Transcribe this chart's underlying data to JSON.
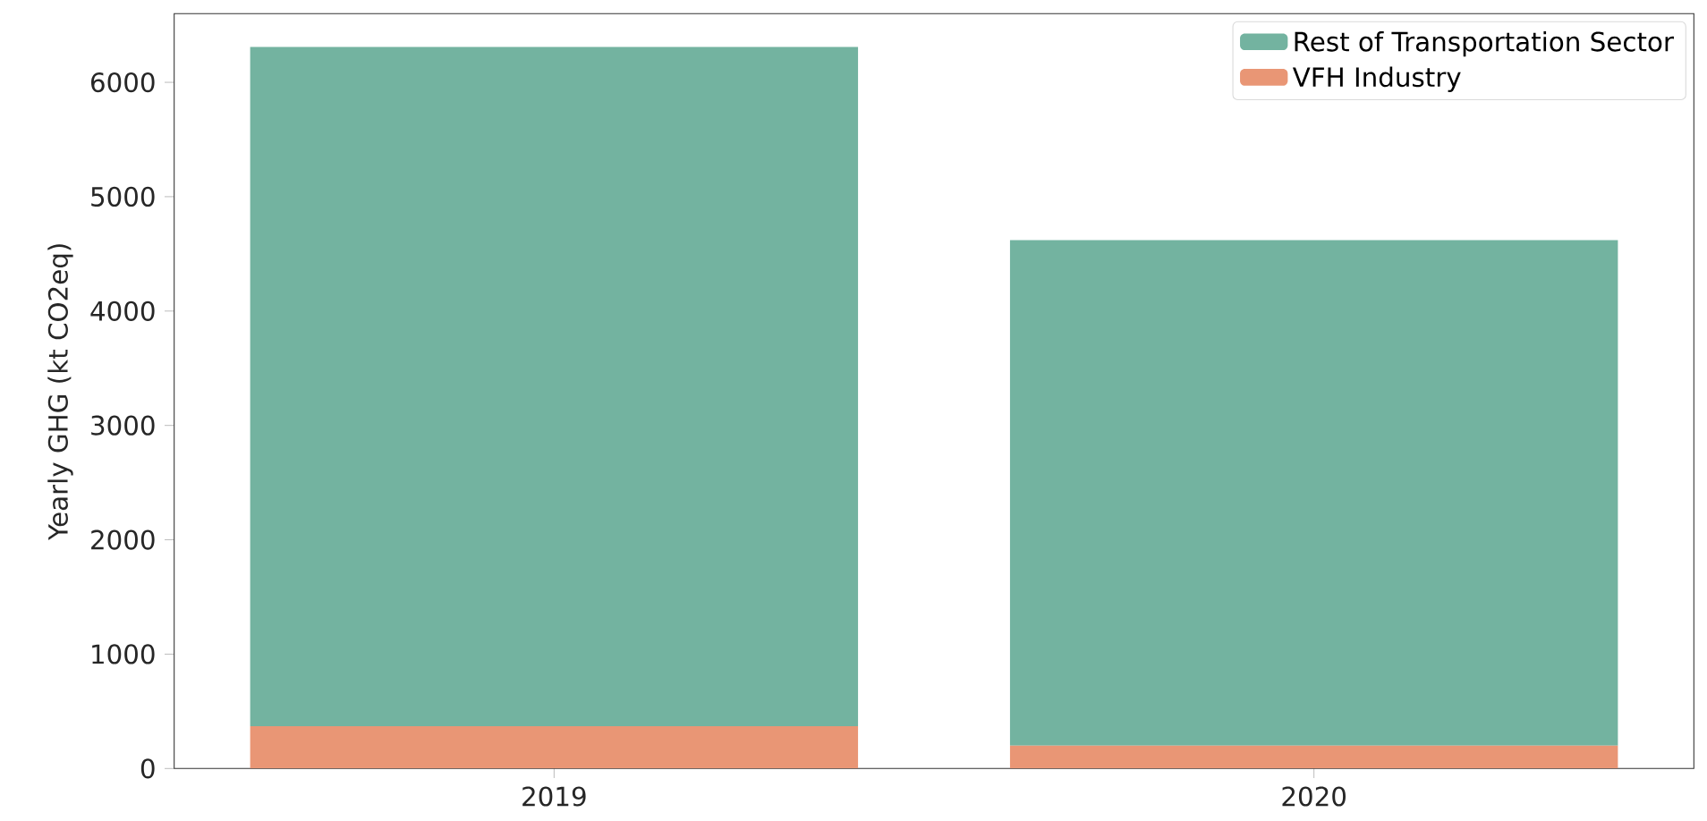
{
  "chart_data": {
    "type": "bar",
    "stacked": true,
    "ylabel": "Yearly GHG (kt CO2eq)",
    "categories": [
      "2019",
      "2020"
    ],
    "series": [
      {
        "name": "VFH Industry",
        "color": "#e99675",
        "values": [
          370,
          200
        ]
      },
      {
        "name": "Rest of Transportation Sector",
        "color": "#73b3a0",
        "values": [
          5940,
          4420
        ]
      }
    ],
    "ylim": [
      0,
      6600
    ],
    "yticks": [
      0,
      1000,
      2000,
      3000,
      4000,
      5000,
      6000
    ],
    "legend": "top right",
    "grid": false
  }
}
